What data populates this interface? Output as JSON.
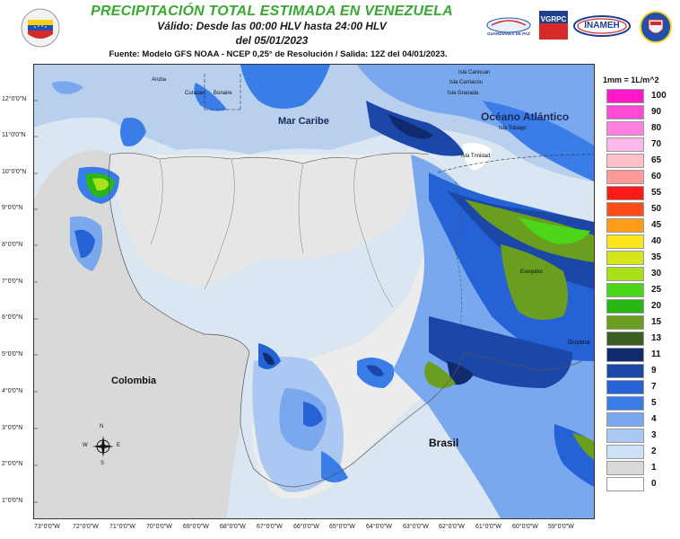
{
  "header": {
    "title": "PRECIPITACIÓN TOTAL ESTIMADA EN VENEZUELA",
    "valid": "Válido: Desde las 00:00 HLV hasta 24:00 HLV",
    "date": "del 05/01/2023",
    "source": "Fuente: Modelo GFS NOAA - NCEP 0,25° de Resolución / Salida: 12Z del 04/01/2023."
  },
  "logos": {
    "left_icon": "venezuela-flag-shield-icon",
    "gdp_text": "GUARDIANES DE PAZ",
    "vgrpc_text": "VGRPC",
    "inameh_text": "INAMEH",
    "right_icon": "coat-of-arms-icon"
  },
  "map": {
    "latitudes": [
      "12°0'0\"N",
      "11°0'0\"N",
      "10°0'0\"N",
      "9°0'0\"N",
      "8°0'0\"N",
      "7°0'0\"N",
      "6°0'0\"N",
      "5°0'0\"N",
      "4°0'0\"N",
      "3°0'0\"N",
      "2°0'0\"N",
      "1°0'0\"N"
    ],
    "longitudes": [
      "73°0'0\"W",
      "72°0'0\"W",
      "71°0'0\"W",
      "70°0'0\"W",
      "69°0'0\"W",
      "68°0'0\"W",
      "67°0'0\"W",
      "66°0'0\"W",
      "65°0'0\"W",
      "64°0'0\"W",
      "63°0'0\"W",
      "62°0'0\"W",
      "61°0'0\"W",
      "60°0'0\"W",
      "59°0'0\"W"
    ],
    "labels": {
      "mar_caribe": "Mar Caribe",
      "oceano": "Océano Atlántico",
      "colombia": "Colombia",
      "brasil": "Brasil",
      "guyana": "Guyana",
      "aruba": "Aruba",
      "curazao": "Curazao",
      "bonaire": "Bonaire",
      "canouan": "Isla Canouan",
      "carriacou": "Isla Carriacou",
      "granada": "Isla Granada",
      "tobago": "Isla Tobago",
      "trinidad": "Isla Trinidad",
      "esequibo": "Esequibo"
    },
    "compass": {
      "n": "N",
      "s": "S",
      "e": "E",
      "w": "W",
      "icon": "compass-rose-icon"
    }
  },
  "legend": {
    "unit": "1mm = 1L/m^2",
    "items": [
      {
        "label": "100",
        "color": "#ff19c8"
      },
      {
        "label": "90",
        "color": "#ff4ad6"
      },
      {
        "label": "80",
        "color": "#ff80e0"
      },
      {
        "label": "70",
        "color": "#ffb8ea"
      },
      {
        "label": "65",
        "color": "#ffc0c8"
      },
      {
        "label": "60",
        "color": "#ff9a9a"
      },
      {
        "label": "55",
        "color": "#ff1a1a"
      },
      {
        "label": "50",
        "color": "#ff4d1a"
      },
      {
        "label": "45",
        "color": "#ff9c1a"
      },
      {
        "label": "40",
        "color": "#ffe61a"
      },
      {
        "label": "35",
        "color": "#d4e61a"
      },
      {
        "label": "30",
        "color": "#a8e01a"
      },
      {
        "label": "25",
        "color": "#4cd61a"
      },
      {
        "label": "20",
        "color": "#28b814"
      },
      {
        "label": "15",
        "color": "#6b9e1e"
      },
      {
        "label": "13",
        "color": "#3a5f23"
      },
      {
        "label": "11",
        "color": "#0f2b6e"
      },
      {
        "label": "9",
        "color": "#1b47a8"
      },
      {
        "label": "7",
        "color": "#2562d6"
      },
      {
        "label": "5",
        "color": "#3a7de8"
      },
      {
        "label": "4",
        "color": "#7aa8ef"
      },
      {
        "label": "3",
        "color": "#aac8f2"
      },
      {
        "label": "2",
        "color": "#cde2f7"
      },
      {
        "label": "1",
        "color": "#d9d9d9"
      },
      {
        "label": "0",
        "color": "#ffffff"
      }
    ]
  }
}
